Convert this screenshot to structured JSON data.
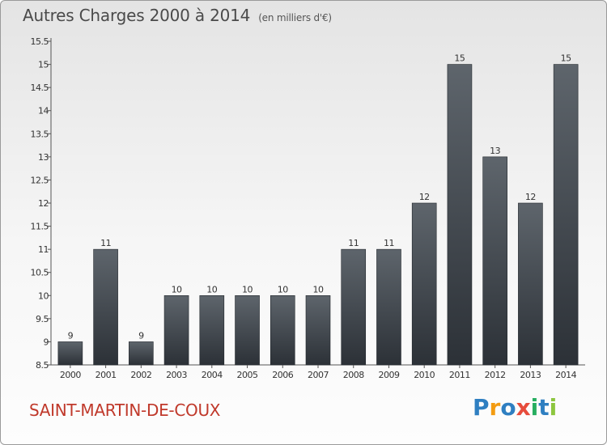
{
  "title": "Autres Charges 2000 à 2014",
  "unit": "(en milliers d'€)",
  "commune": "SAINT-MARTIN-DE-COUX",
  "brand": {
    "text": "Proxiti",
    "letters": [
      {
        "ch": "P",
        "color": "#2f7fc1"
      },
      {
        "ch": "r",
        "color": "#f39c12"
      },
      {
        "ch": "o",
        "color": "#2f7fc1"
      },
      {
        "ch": "x",
        "color": "#e74c3c"
      },
      {
        "ch": "i",
        "color": "#27ae60"
      },
      {
        "ch": "t",
        "color": "#2f7fc1"
      },
      {
        "ch": "i",
        "color": "#8dc63f"
      }
    ]
  },
  "chart_data": {
    "type": "bar",
    "categories": [
      "2000",
      "2001",
      "2002",
      "2003",
      "2004",
      "2005",
      "2006",
      "2007",
      "2008",
      "2009",
      "2010",
      "2011",
      "2012",
      "2013",
      "2014"
    ],
    "values": [
      9,
      11,
      9,
      10,
      10,
      10,
      10,
      10,
      11,
      11,
      12,
      15,
      13,
      12,
      15
    ],
    "data_labels": [
      "9",
      "11",
      "9",
      "10",
      "10",
      "10",
      "10",
      "10",
      "11",
      "11",
      "12",
      "15",
      "13",
      "12",
      "15"
    ],
    "yticks": [
      "8.5",
      "9",
      "9.5",
      "10",
      "10.5",
      "11",
      "11.5",
      "12",
      "12.5",
      "13",
      "13.5",
      "14",
      "14.5",
      "15",
      "15.5"
    ],
    "ylim": [
      8.5,
      15.5
    ],
    "grid": false,
    "bar_color_top": "#5e656c",
    "bar_color_bottom": "#2c3137",
    "title": "Autres Charges 2000 à 2014",
    "xlabel": "",
    "ylabel": ""
  }
}
